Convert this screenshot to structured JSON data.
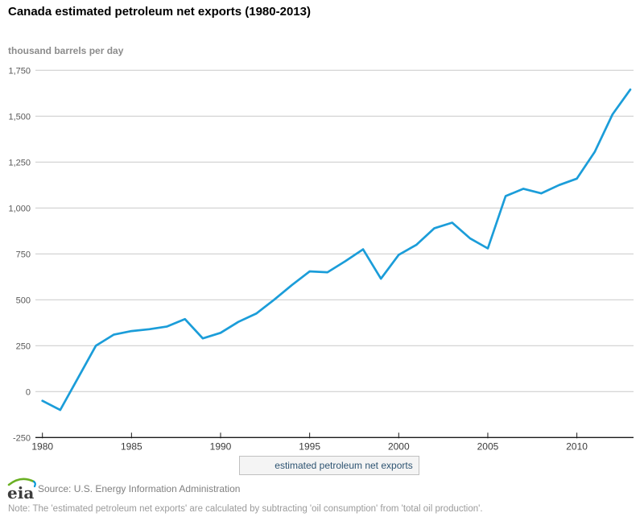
{
  "header": {
    "title": "Canada estimated petroleum net exports (1980-2013)"
  },
  "chart_data": {
    "type": "line",
    "title": "Canada estimated petroleum net exports (1980-2013)",
    "ylabel": "thousand barrels per day",
    "xlabel": "",
    "x": [
      1980,
      1981,
      1982,
      1983,
      1984,
      1985,
      1986,
      1987,
      1988,
      1989,
      1990,
      1991,
      1992,
      1993,
      1994,
      1995,
      1996,
      1997,
      1998,
      1999,
      2000,
      2001,
      2002,
      2003,
      2004,
      2005,
      2006,
      2007,
      2008,
      2009,
      2010,
      2011,
      2012,
      2013
    ],
    "series": [
      {
        "name": "estimated petroleum net exports",
        "color": "#1b9dd9",
        "values": [
          -50,
          -100,
          75,
          250,
          310,
          330,
          340,
          355,
          395,
          290,
          320,
          380,
          425,
          500,
          580,
          655,
          650,
          710,
          775,
          615,
          745,
          800,
          890,
          920,
          835,
          780,
          1065,
          1105,
          1080,
          1125,
          1160,
          1305,
          1510,
          1645
        ]
      }
    ],
    "xlim": [
      1980,
      2013
    ],
    "ylim": [
      -250,
      1750
    ],
    "yticks": [
      -250,
      0,
      250,
      500,
      750,
      1000,
      1250,
      1500,
      1750
    ],
    "ytick_labels": [
      "-250",
      "0",
      "250",
      "500",
      "750",
      "1,000",
      "1,250",
      "1,500",
      "1,750"
    ],
    "xticks": [
      1980,
      1985,
      1990,
      1995,
      2000,
      2005,
      2010
    ],
    "grid": true,
    "legend_position": "bottom"
  },
  "legend": {
    "label": "estimated petroleum net exports"
  },
  "footer": {
    "logo_text": "eia",
    "source": "Source: U.S. Energy Information Administration",
    "note": "Note: The 'estimated petroleum net exports' are calculated by subtracting 'oil consumption' from 'total oil production'."
  },
  "colors": {
    "line": "#1b9dd9",
    "grid": "#c9c9c9",
    "axis": "#1a1a1a",
    "ytick_text": "#595959",
    "xtick_text": "#3c3c3c",
    "legend_text": "#2e5472",
    "logo_green": "#6ab023",
    "logo_blue": "#0096d7"
  }
}
